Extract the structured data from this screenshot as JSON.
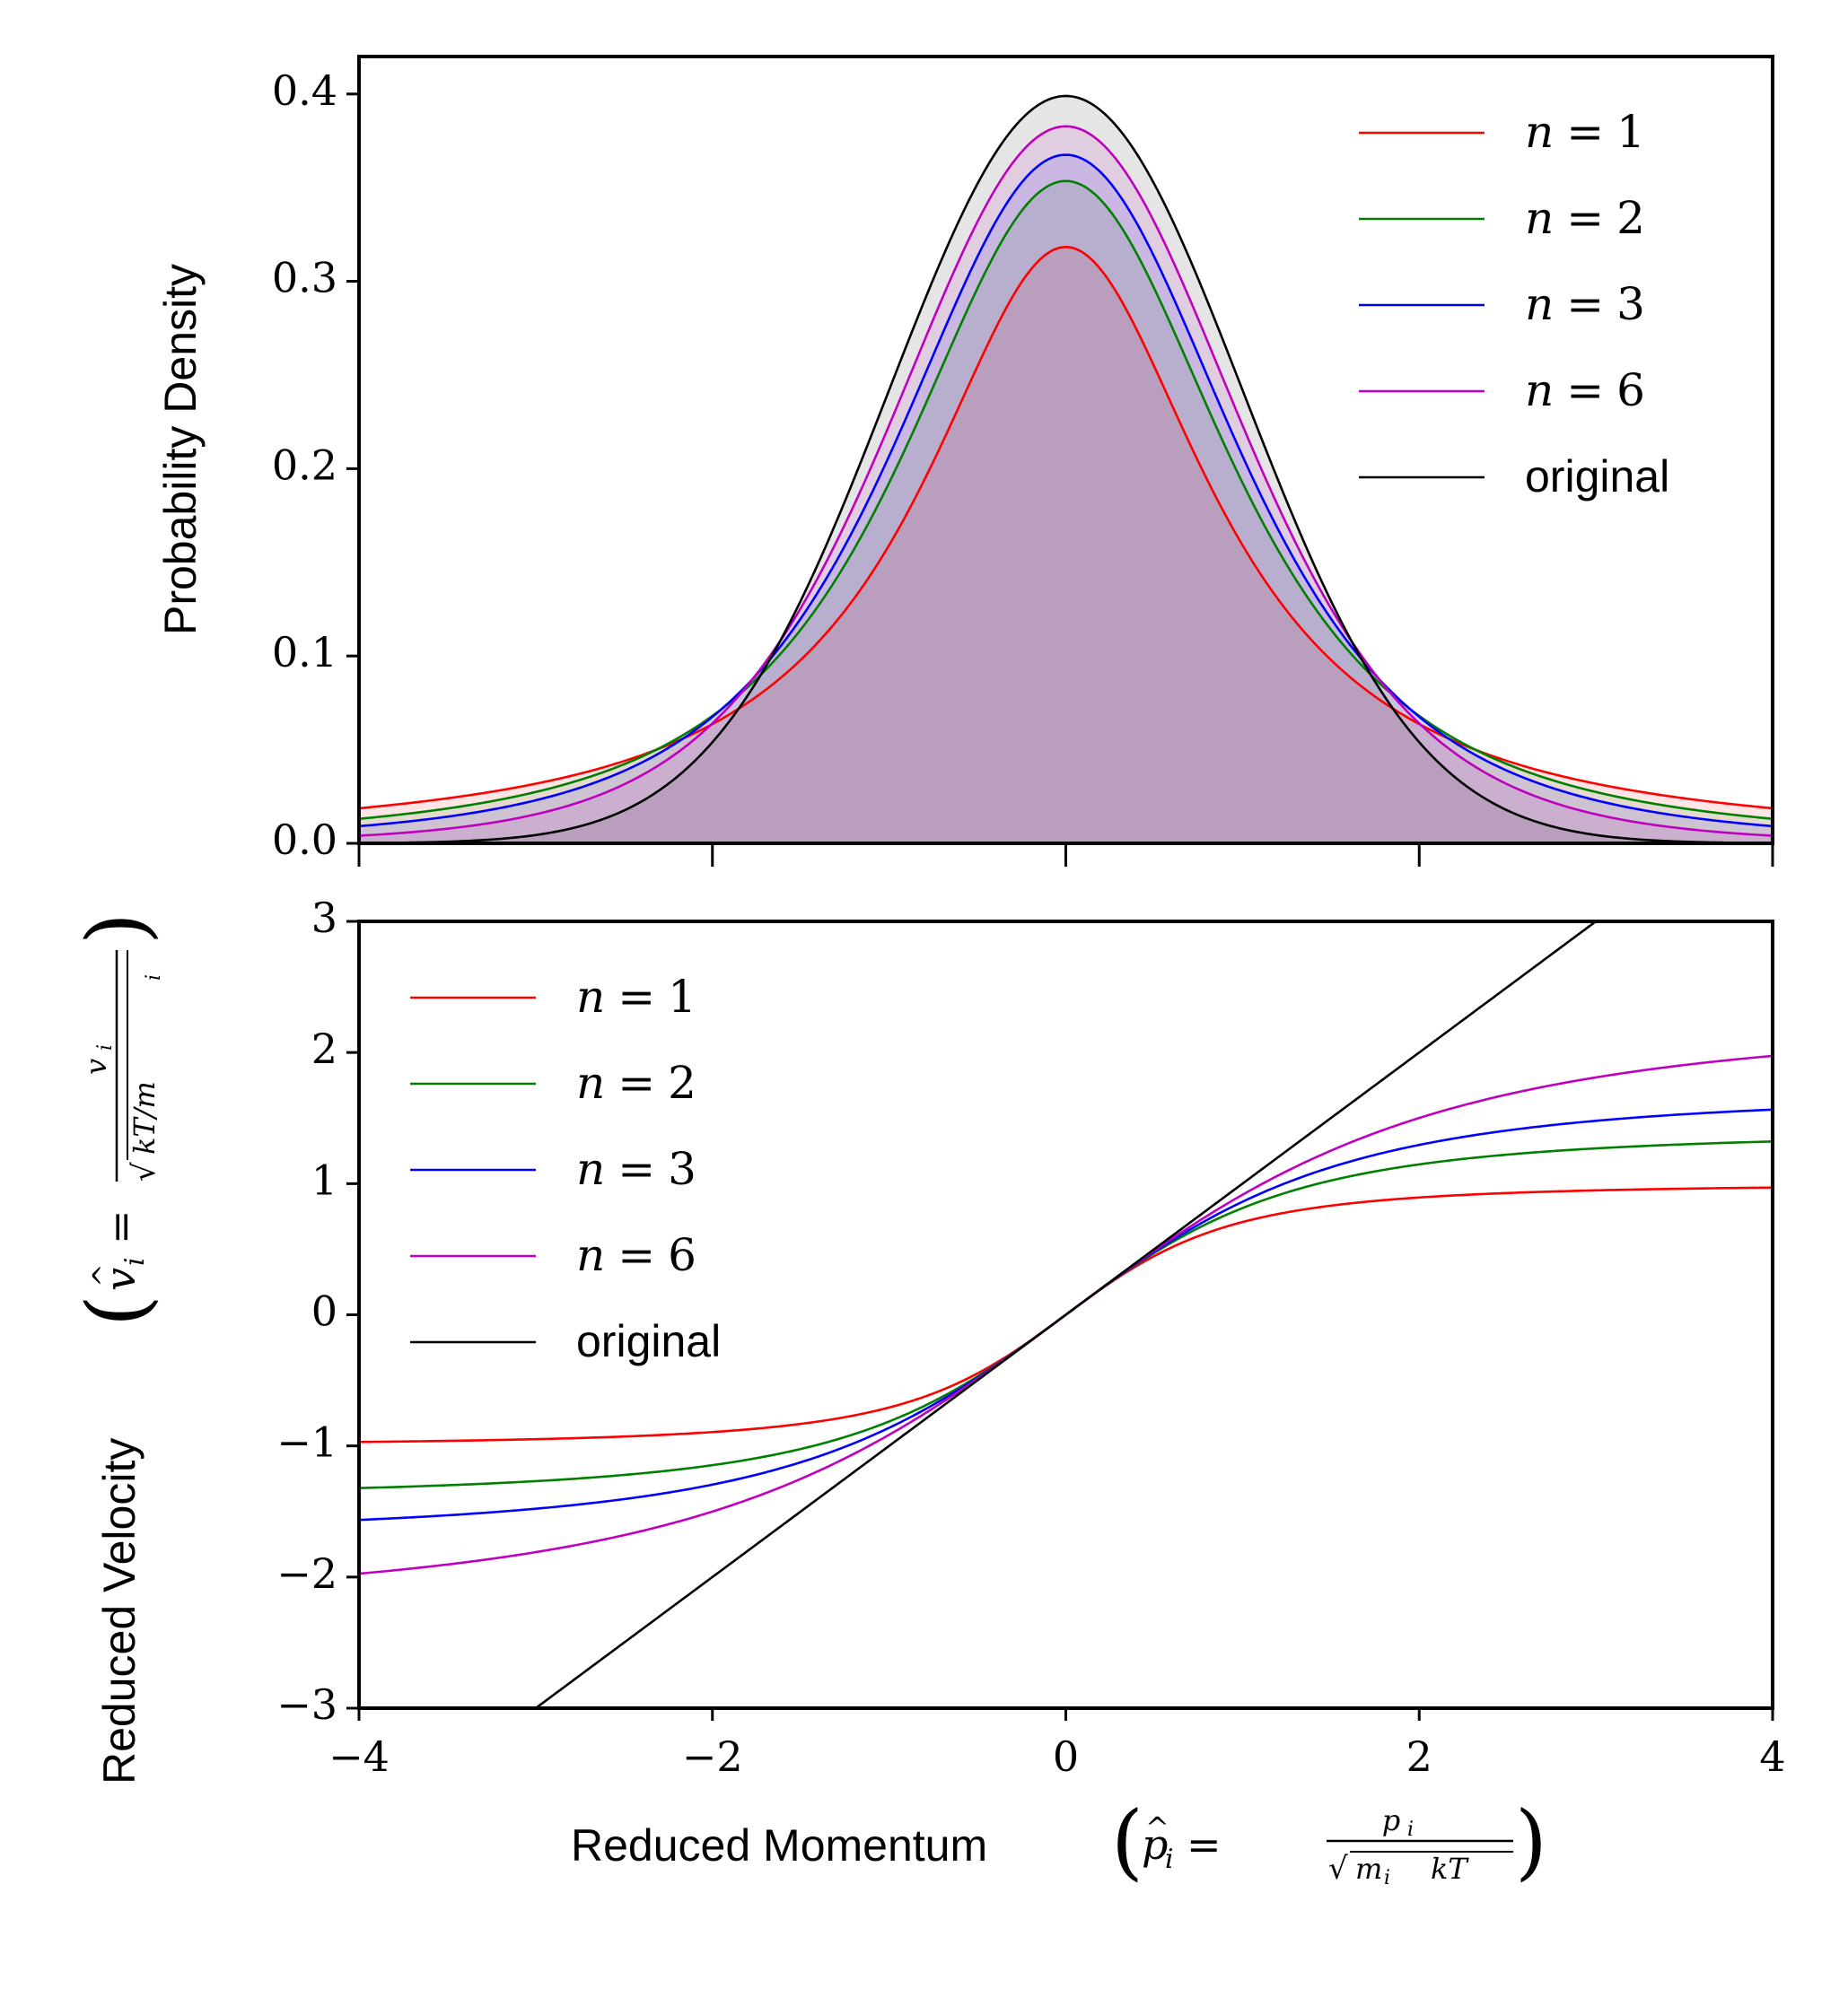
{
  "chart_data": [
    {
      "type": "line",
      "panel": "top",
      "ylabel": "Probability Density",
      "xlim": [
        -4,
        4
      ],
      "ylim": [
        0,
        0.42
      ],
      "xticks": [
        -4,
        -2,
        0,
        2,
        4
      ],
      "xtick_labels_shown": false,
      "yticks": [
        0.0,
        0.1,
        0.2,
        0.3,
        0.4
      ],
      "ytick_labels": [
        "0.0",
        "0.1",
        "0.2",
        "0.3",
        "0.4"
      ],
      "filled": true,
      "legend_position": "upper right",
      "series": [
        {
          "name": "n = 1",
          "color": "#ff0000",
          "family": "cauchy",
          "peak": 0.318
        },
        {
          "name": "n = 2",
          "color": "#008000",
          "family": "student-t",
          "df": 2,
          "peak": 0.354
        },
        {
          "name": "n = 3",
          "color": "#0000ff",
          "family": "student-t",
          "df": 3,
          "peak": 0.368
        },
        {
          "name": "n = 6",
          "color": "#bf00bf",
          "family": "student-t",
          "df": 6,
          "peak": 0.383
        },
        {
          "name": "original",
          "color": "#000000",
          "family": "normal",
          "peak": 0.399
        }
      ]
    },
    {
      "type": "line",
      "panel": "bottom",
      "xlabel_text": "Reduced Momentum",
      "ylabel_text": "Reduced Velocity",
      "xlim": [
        -4,
        4
      ],
      "ylim": [
        -3,
        3
      ],
      "xticks": [
        -4,
        -2,
        0,
        2,
        4
      ],
      "xtick_labels": [
        "−4",
        "−2",
        "0",
        "2",
        "4"
      ],
      "yticks": [
        -3,
        -2,
        -1,
        0,
        1,
        2,
        3
      ],
      "ytick_labels": [
        "−3",
        "−2",
        "−1",
        "0",
        "1",
        "2",
        "3"
      ],
      "legend_position": "upper left",
      "series": [
        {
          "name": "n = 1",
          "color": "#ff0000",
          "value_at_x4": 1.0,
          "value_at_xneg4": -1.0
        },
        {
          "name": "n = 2",
          "color": "#008000",
          "value_at_x4": 1.4,
          "value_at_xneg4": -1.4
        },
        {
          "name": "n = 3",
          "color": "#0000ff",
          "value_at_x4": 1.7,
          "value_at_xneg4": -1.7
        },
        {
          "name": "n = 6",
          "color": "#bf00bf",
          "value_at_x4": 2.27,
          "value_at_xneg4": -2.27
        },
        {
          "name": "original",
          "color": "#000000",
          "relation": "y = x"
        }
      ]
    }
  ],
  "legend_labels": {
    "n_symbol": "n",
    "equals": "=",
    "values": [
      "1",
      "2",
      "3",
      "6"
    ],
    "original": "original"
  },
  "math_labels": {
    "x_paren_open": "(",
    "x_paren_close": ")",
    "x_lhs_base": "p",
    "x_lhs_hat": "^",
    "x_lhs_sub": "i",
    "x_equals": "=",
    "x_num_base": "p",
    "x_num_sub": "i",
    "x_den_sqrt": "√",
    "x_den_m": "m",
    "x_den_m_sub": "i",
    "x_den_kT": "kT",
    "y_paren_open": "(",
    "y_paren_close": ")",
    "y_lhs_base": "v",
    "y_lhs_hat": "^",
    "y_lhs_sub": "i",
    "y_equals": "=",
    "y_num_base": "v",
    "y_num_sub": "i",
    "y_den_sqrt": "√",
    "y_den_kT_over": "kT/m",
    "y_den_sub": "i"
  }
}
